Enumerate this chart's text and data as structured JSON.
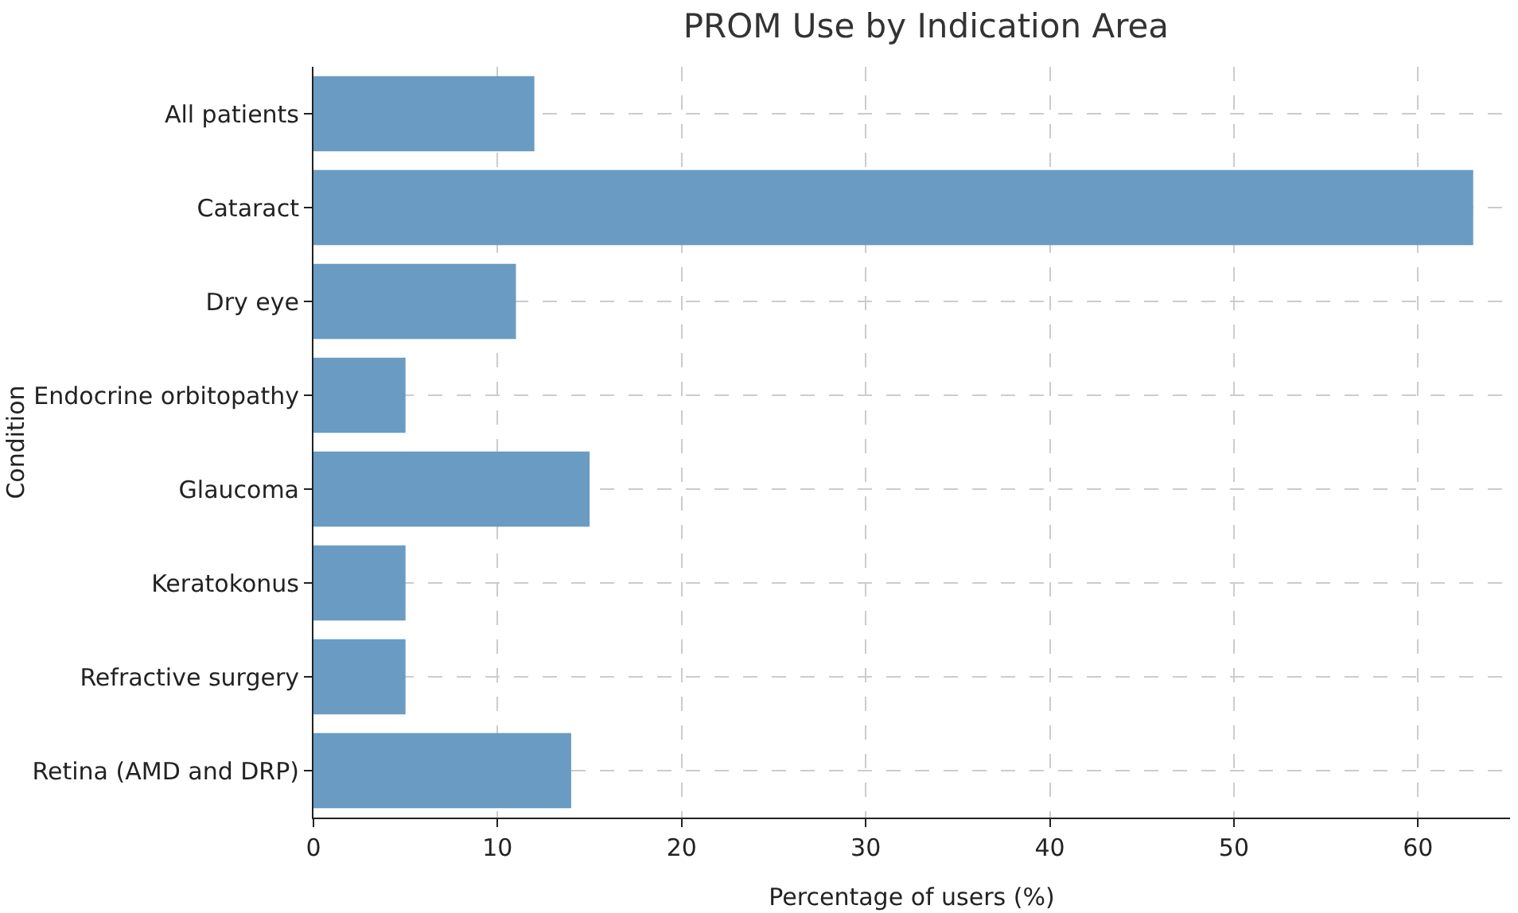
{
  "chart_data": {
    "type": "bar",
    "orientation": "horizontal",
    "title": "PROM Use by Indication Area",
    "xlabel": "Percentage of users (%)",
    "ylabel": "Condition",
    "categories": [
      "All patients",
      "Cataract",
      "Dry eye",
      "Endocrine orbitopathy",
      "Glaucoma",
      "Keratokonus",
      "Refractive surgery",
      "Retina (AMD and DRP)"
    ],
    "values": [
      12,
      63,
      11,
      5,
      15,
      5,
      5,
      14
    ],
    "color": "#6a9bc3",
    "xlim": [
      0,
      65
    ],
    "xticks": [
      0,
      10,
      20,
      30,
      40,
      50,
      60
    ],
    "grid": true
  }
}
